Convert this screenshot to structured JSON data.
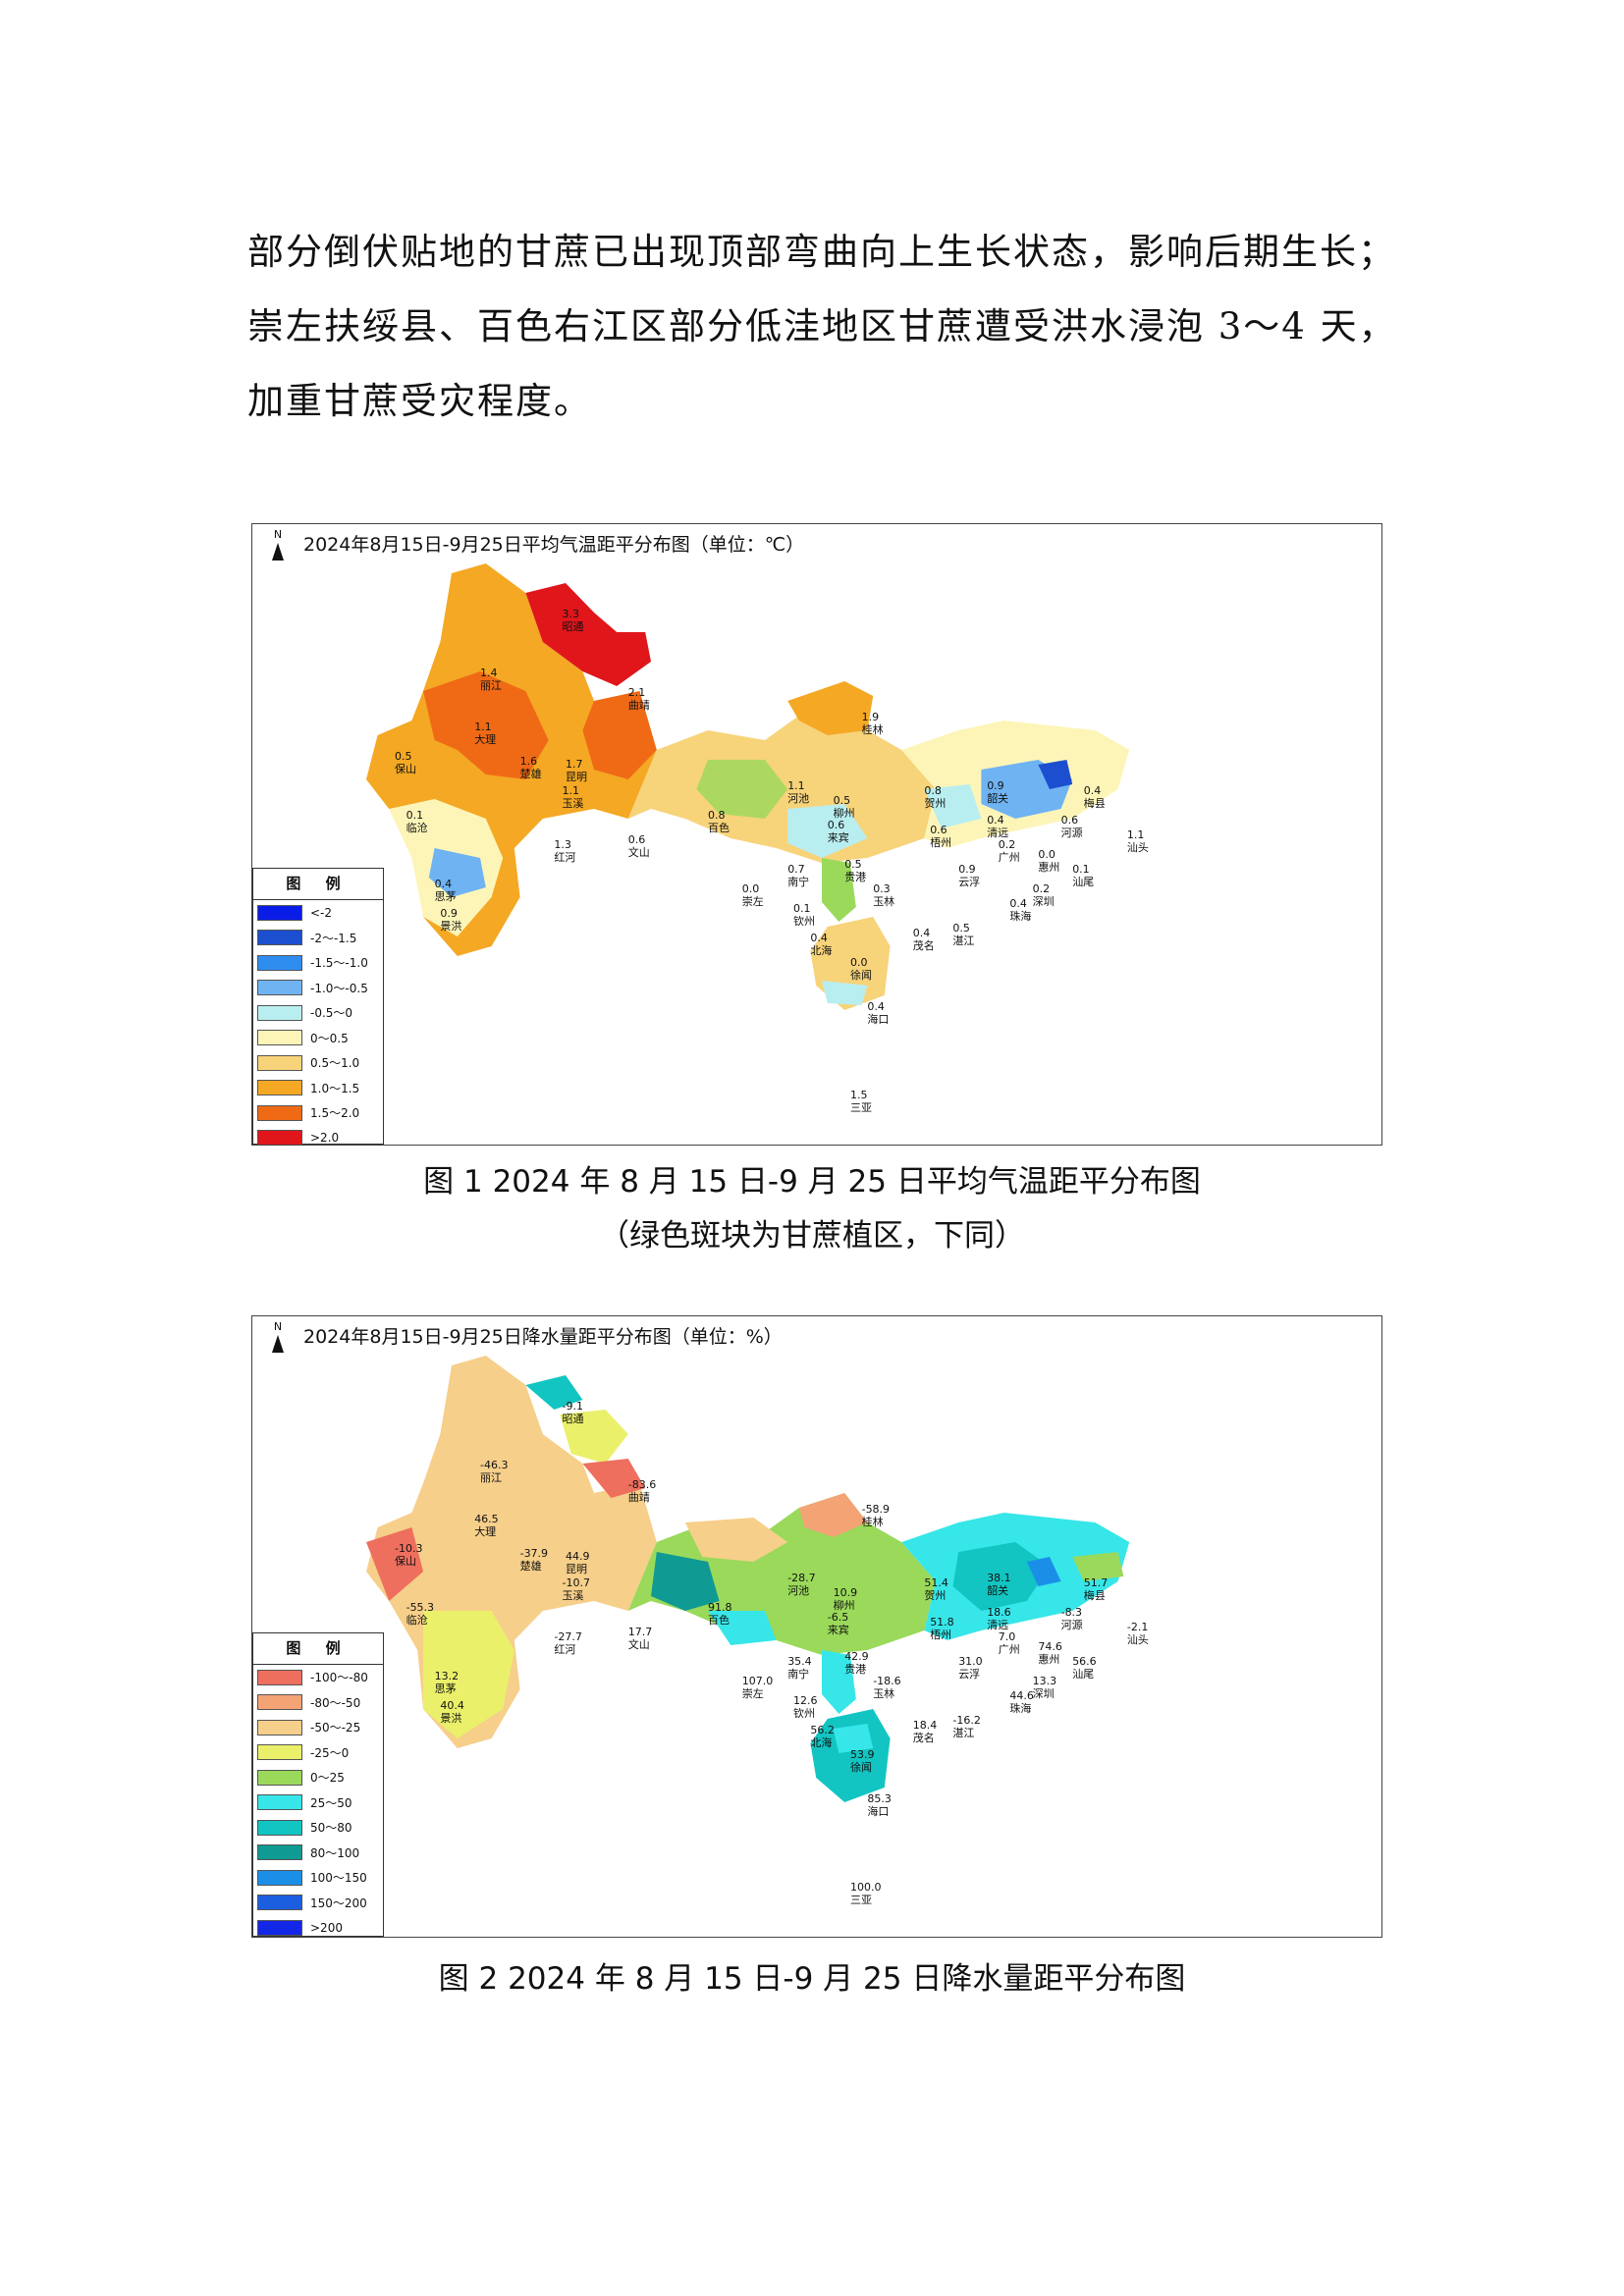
{
  "paragraph": {
    "lines": [
      "部分倒伏贴地的甘蔗已出现顶部弯曲向上生长状态，影响后期生长；",
      "崇左扶绥县、百色右江区部分低洼地区甘蔗遭受洪水浸泡 3～4 天，",
      "加重甘蔗受灾程度。"
    ]
  },
  "figure1": {
    "map_title": "2024年8月15日-9月25日平均气温距平分布图（单位：℃）",
    "north": "N",
    "legend_title": "图 例",
    "legend": [
      {
        "label": "<-2",
        "color": "#0a1de8"
      },
      {
        "label": "-2～-1.5",
        "color": "#1b4fd0"
      },
      {
        "label": "-1.5～-1.0",
        "color": "#2f8df0"
      },
      {
        "label": "-1.0～-0.5",
        "color": "#6fb3f2"
      },
      {
        "label": "-0.5～0",
        "color": "#b9eef0"
      },
      {
        "label": "0～0.5",
        "color": "#fdf5b8"
      },
      {
        "label": "0.5～1.0",
        "color": "#f7d37a"
      },
      {
        "label": "1.0～1.5",
        "color": "#f4a824"
      },
      {
        "label": "1.5～2.0",
        "color": "#f06a16"
      },
      {
        "label": ">2.0",
        "color": "#e0161b"
      }
    ],
    "stations": [
      {
        "name": "丽江",
        "value": "1.4"
      },
      {
        "name": "昭通",
        "value": "3.3"
      },
      {
        "name": "大理",
        "value": "1.1"
      },
      {
        "name": "曲靖",
        "value": "2.1"
      },
      {
        "name": "保山",
        "value": "0.5"
      },
      {
        "name": "楚雄",
        "value": "1.6"
      },
      {
        "name": "昆明",
        "value": "1.7"
      },
      {
        "name": "玉溪",
        "value": "1.1"
      },
      {
        "name": "临沧",
        "value": "0.1"
      },
      {
        "name": "红河",
        "value": "1.3"
      },
      {
        "name": "文山",
        "value": "0.6"
      },
      {
        "name": "思茅",
        "value": "0.4"
      },
      {
        "name": "景洪",
        "value": "0.9"
      },
      {
        "name": "百色",
        "value": "0.8"
      },
      {
        "name": "河池",
        "value": "1.1"
      },
      {
        "name": "桂林",
        "value": "1.9"
      },
      {
        "name": "柳州",
        "value": "0.5"
      },
      {
        "name": "来宾",
        "value": "0.6"
      },
      {
        "name": "贺州",
        "value": "0.8"
      },
      {
        "name": "韶关",
        "value": "0.9"
      },
      {
        "name": "梅县",
        "value": "0.4"
      },
      {
        "name": "南宁",
        "value": "0.7"
      },
      {
        "name": "崇左",
        "value": "0.0"
      },
      {
        "name": "贵港",
        "value": "0.5"
      },
      {
        "name": "梧州",
        "value": "0.6"
      },
      {
        "name": "清远",
        "value": "0.4"
      },
      {
        "name": "河源",
        "value": "0.6"
      },
      {
        "name": "汕头",
        "value": "1.1"
      },
      {
        "name": "玉林",
        "value": "0.3"
      },
      {
        "name": "广州",
        "value": "0.2"
      },
      {
        "name": "惠州",
        "value": "0.0"
      },
      {
        "name": "汕尾",
        "value": "0.1"
      },
      {
        "name": "云浮",
        "value": "0.9"
      },
      {
        "name": "深圳",
        "value": "0.2"
      },
      {
        "name": "钦州",
        "value": "0.1"
      },
      {
        "name": "北海",
        "value": "0.4"
      },
      {
        "name": "茂名",
        "value": "0.4"
      },
      {
        "name": "湛江",
        "value": "0.5"
      },
      {
        "name": "珠海",
        "value": "0.4"
      },
      {
        "name": "徐闻",
        "value": "0.0"
      },
      {
        "name": "海口",
        "value": "0.4"
      },
      {
        "name": "三亚",
        "value": "1.5"
      }
    ]
  },
  "caption1": {
    "line1": "图 1  2024 年 8 月 15 日-9 月 25 日平均气温距平分布图",
    "line2": "（绿色斑块为甘蔗植区，下同）"
  },
  "figure2": {
    "map_title": "2024年8月15日-9月25日降水量距平分布图（单位：%）",
    "north": "N",
    "legend_title": "图 例",
    "legend": [
      {
        "label": "-100～-80",
        "color": "#ee6f5e"
      },
      {
        "label": "-80～-50",
        "color": "#f3a374"
      },
      {
        "label": "-50～-25",
        "color": "#f6cf8a"
      },
      {
        "label": "-25～0",
        "color": "#eaf06a"
      },
      {
        "label": "0～25",
        "color": "#9ad95a"
      },
      {
        "label": "25～50",
        "color": "#37e6e8"
      },
      {
        "label": "50～80",
        "color": "#12c5c2"
      },
      {
        "label": "80～100",
        "color": "#0f9a93"
      },
      {
        "label": "100～150",
        "color": "#1b8fe8"
      },
      {
        "label": "150～200",
        "color": "#1b5fe0"
      },
      {
        "label": ">200",
        "color": "#1327e6"
      }
    ],
    "stations": [
      {
        "name": "昭通",
        "value": "-9.1"
      },
      {
        "name": "丽江",
        "value": "-46.3"
      },
      {
        "name": "大理",
        "value": "46.5"
      },
      {
        "name": "曲靖",
        "value": "-83.6"
      },
      {
        "name": "保山",
        "value": "-10.3"
      },
      {
        "name": "楚雄",
        "value": "-37.9"
      },
      {
        "name": "昆明",
        "value": "44.9"
      },
      {
        "name": "玉溪",
        "value": "-10.7"
      },
      {
        "name": "临沧",
        "value": "-55.3"
      },
      {
        "name": "红河",
        "value": "-27.7"
      },
      {
        "name": "文山",
        "value": "17.7"
      },
      {
        "name": "思茅",
        "value": "13.2"
      },
      {
        "name": "景洪",
        "value": "40.4"
      },
      {
        "name": "百色",
        "value": "91.8"
      },
      {
        "name": "河池",
        "value": "-28.7"
      },
      {
        "name": "桂林",
        "value": "-58.9"
      },
      {
        "name": "柳州",
        "value": "10.9"
      },
      {
        "name": "来宾",
        "value": "-6.5"
      },
      {
        "name": "贺州",
        "value": "51.4"
      },
      {
        "name": "韶关",
        "value": "38.1"
      },
      {
        "name": "梅县",
        "value": "51.7"
      },
      {
        "name": "崇左",
        "value": "107.0"
      },
      {
        "name": "南宁",
        "value": "35.4"
      },
      {
        "name": "贵港",
        "value": "42.9"
      },
      {
        "name": "玉林",
        "value": "-18.6"
      },
      {
        "name": "梧州",
        "value": "51.8"
      },
      {
        "name": "清远",
        "value": "18.6"
      },
      {
        "name": "河源",
        "value": "-8.3"
      },
      {
        "name": "汕头",
        "value": "-2.1"
      },
      {
        "name": "广州",
        "value": "7.0"
      },
      {
        "name": "云浮",
        "value": "31.0"
      },
      {
        "name": "惠州",
        "value": "74.6"
      },
      {
        "name": "汕尾",
        "value": "56.6"
      },
      {
        "name": "深圳",
        "value": "13.3"
      },
      {
        "name": "珠海",
        "value": "44.6"
      },
      {
        "name": "钦州",
        "value": "12.6"
      },
      {
        "name": "北海",
        "value": "56.2"
      },
      {
        "name": "茂名",
        "value": "18.4"
      },
      {
        "name": "湛江",
        "value": "-16.2"
      },
      {
        "name": "徐闻",
        "value": "53.9"
      },
      {
        "name": "海口",
        "value": "85.3"
      },
      {
        "name": "三亚",
        "value": "100.0"
      }
    ]
  },
  "caption2": {
    "line1": "图 2  2024 年 8 月 15 日-9 月 25 日降水量距平分布图"
  }
}
